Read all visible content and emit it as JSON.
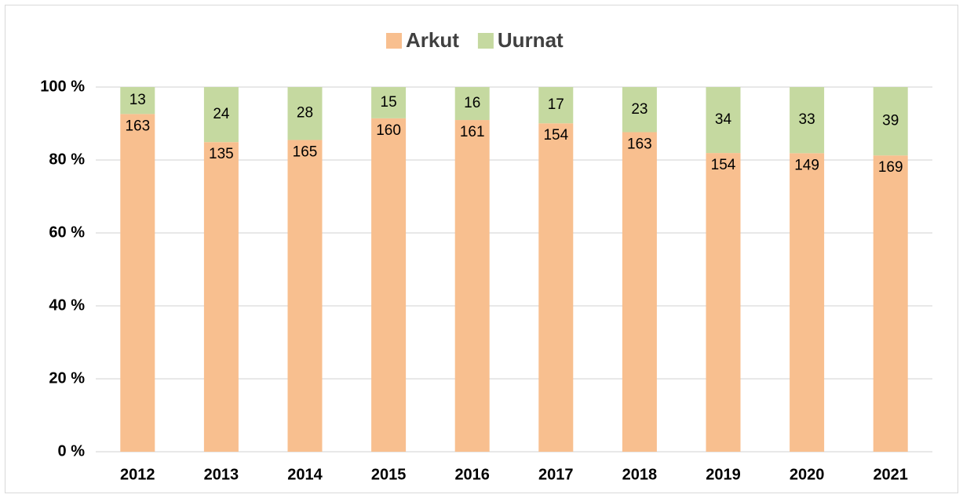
{
  "chart_data": {
    "type": "bar",
    "stacking": "percent",
    "categories": [
      "2012",
      "2013",
      "2014",
      "2015",
      "2016",
      "2017",
      "2018",
      "2019",
      "2020",
      "2021"
    ],
    "series": [
      {
        "name": "Arkut",
        "color": "#f8bf8f",
        "values": [
          163,
          135,
          165,
          160,
          161,
          154,
          163,
          154,
          149,
          169
        ]
      },
      {
        "name": "Uurnat",
        "color": "#c5d9a0",
        "values": [
          13,
          24,
          28,
          15,
          16,
          17,
          23,
          34,
          33,
          39
        ]
      }
    ],
    "ylim": [
      0,
      100
    ],
    "yticks": [
      {
        "value": 0,
        "label": "0 %"
      },
      {
        "value": 20,
        "label": "20 %"
      },
      {
        "value": 40,
        "label": "40 %"
      },
      {
        "value": 60,
        "label": "60 %"
      },
      {
        "value": 80,
        "label": "80 %"
      },
      {
        "value": 100,
        "label": "100 %"
      }
    ],
    "grid": true,
    "legend": "top"
  }
}
